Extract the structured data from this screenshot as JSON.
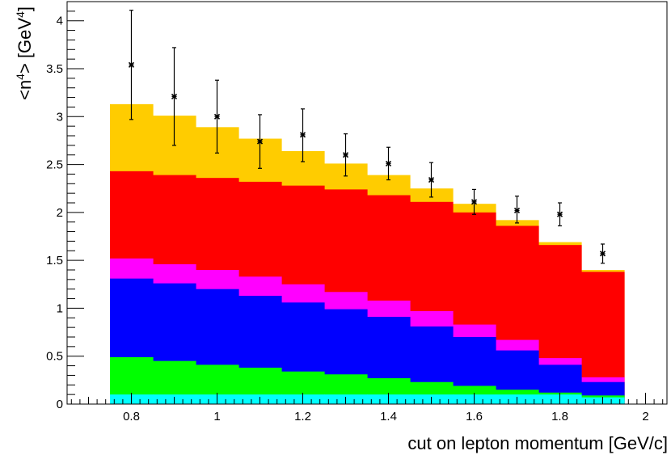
{
  "chart_data": {
    "type": "bar",
    "stacked": true,
    "xlabel": "cut on lepton momentum [GeV/c]",
    "ylabel": "<n⁴> [GeV⁴]",
    "ylabel_parts": {
      "pre": "<n",
      "sup1": "4",
      "mid": "> [GeV",
      "sup2": "4",
      "post": "]"
    },
    "xlim": [
      0.65,
      2.05
    ],
    "ylim": [
      0,
      4.2
    ],
    "grid": false,
    "x_ticks": [
      0.8,
      1,
      1.2,
      1.4,
      1.6,
      1.8,
      2
    ],
    "x_tick_labels": [
      "0.8",
      "1",
      "1.2",
      "1.4",
      "1.6",
      "1.8",
      "2"
    ],
    "y_ticks": [
      0,
      0.5,
      1,
      1.5,
      2,
      2.5,
      3,
      3.5,
      4
    ],
    "y_tick_labels": [
      "0",
      "0.5",
      "1",
      "1.5",
      "2",
      "2.5",
      "3",
      "3.5",
      "4"
    ],
    "bin_edges": [
      0.75,
      0.85,
      0.95,
      1.05,
      1.15,
      1.25,
      1.35,
      1.45,
      1.55,
      1.65,
      1.75,
      1.85,
      1.95
    ],
    "cumulative_levels": [
      {
        "color": "#ffcc00",
        "values": [
          3.13,
          3.01,
          2.89,
          2.77,
          2.64,
          2.51,
          2.39,
          2.25,
          2.09,
          1.92,
          1.69,
          1.4
        ]
      },
      {
        "color": "#ff0000",
        "values": [
          2.43,
          2.39,
          2.36,
          2.32,
          2.28,
          2.24,
          2.18,
          2.11,
          2.0,
          1.86,
          1.66,
          1.38
        ]
      },
      {
        "color": "#ff00ff",
        "values": [
          1.52,
          1.46,
          1.4,
          1.33,
          1.25,
          1.17,
          1.08,
          0.97,
          0.83,
          0.67,
          0.48,
          0.28
        ]
      },
      {
        "color": "#0000ff",
        "values": [
          1.31,
          1.26,
          1.2,
          1.13,
          1.06,
          0.99,
          0.91,
          0.81,
          0.7,
          0.56,
          0.41,
          0.23
        ]
      },
      {
        "color": "#00ff00",
        "values": [
          0.49,
          0.45,
          0.41,
          0.38,
          0.34,
          0.31,
          0.27,
          0.23,
          0.19,
          0.15,
          0.12,
          0.09
        ]
      },
      {
        "color": "#00ffff",
        "values": [
          0.1,
          0.1,
          0.1,
          0.1,
          0.1,
          0.1,
          0.1,
          0.1,
          0.1,
          0.1,
          0.1,
          0.07
        ]
      }
    ],
    "points": {
      "x": [
        0.8,
        0.9,
        1.0,
        1.1,
        1.2,
        1.3,
        1.4,
        1.5,
        1.6,
        1.7,
        1.8,
        1.9
      ],
      "y": [
        3.54,
        3.21,
        3.0,
        2.74,
        2.81,
        2.6,
        2.51,
        2.34,
        2.11,
        2.02,
        1.98,
        1.57
      ],
      "err_low": [
        0.57,
        0.51,
        0.38,
        0.28,
        0.28,
        0.22,
        0.17,
        0.18,
        0.13,
        0.13,
        0.12,
        0.1
      ],
      "err_high": [
        0.57,
        0.51,
        0.38,
        0.28,
        0.27,
        0.22,
        0.17,
        0.18,
        0.13,
        0.15,
        0.12,
        0.1
      ],
      "color": "#000000"
    }
  }
}
